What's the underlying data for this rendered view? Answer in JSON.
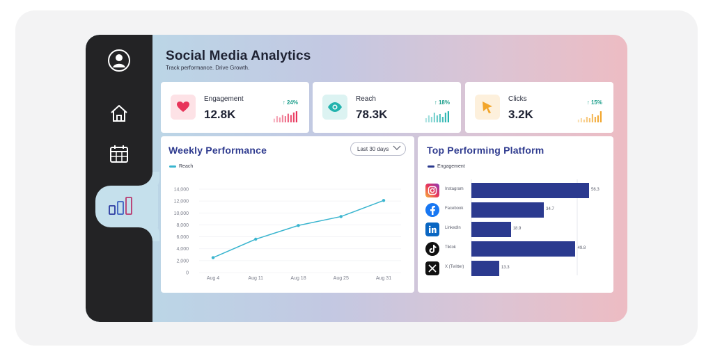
{
  "header": {
    "title": "Social Media Analytics",
    "subtitle": "Track performance. Drive Growth."
  },
  "sidebar": {
    "items": [
      {
        "icon": "user-avatar-icon",
        "active": false
      },
      {
        "icon": "home-icon",
        "active": false
      },
      {
        "icon": "calendar-icon",
        "active": false
      },
      {
        "icon": "bar-chart-icon",
        "active": true
      }
    ]
  },
  "kpis": [
    {
      "label": "Engagement",
      "value": "12.8K",
      "delta": "24%",
      "icon": "heart-icon",
      "color": "#e8345a",
      "bg": "#fde2e6",
      "spark": [
        3,
        5,
        4,
        6,
        5,
        7,
        6,
        8,
        9
      ]
    },
    {
      "label": "Reach",
      "value": "78.3K",
      "delta": "18%",
      "icon": "eye-icon",
      "color": "#22b3ae",
      "bg": "#dcf3f2",
      "spark": [
        3,
        5,
        4,
        7,
        5,
        6,
        4,
        7,
        8
      ]
    },
    {
      "label": "Clicks",
      "value": "3.2K",
      "delta": "15%",
      "icon": "cursor-icon",
      "color": "#f2a52b",
      "bg": "#fdf0dc",
      "spark": [
        2,
        3,
        2,
        4,
        3,
        6,
        4,
        5,
        8
      ]
    }
  ],
  "weekly": {
    "title": "Weekly Performance",
    "range": "Last 30 days",
    "legend": "Reach",
    "line_color": "#3ab5cf"
  },
  "platforms": {
    "title": "Top Performing Platform",
    "legend": "Engagement",
    "bar_color": "#2b3a8f",
    "items": [
      {
        "name": "Instagram",
        "value": 56.3,
        "label": "56.3",
        "icon": "instagram-icon"
      },
      {
        "name": "Facebook",
        "value": 34.7,
        "label": "34.7",
        "icon": "facebook-icon"
      },
      {
        "name": "LinkedIn",
        "value": 18.9,
        "label": "18.9",
        "icon": "linkedin-icon"
      },
      {
        "name": "Tiktok",
        "value": 49.8,
        "label": "49.8",
        "icon": "tiktok-icon"
      },
      {
        "name": "X (Twitter)",
        "value": 13.3,
        "label": "13.3",
        "icon": "x-twitter-icon"
      }
    ]
  },
  "chart_data": [
    {
      "type": "line",
      "title": "Weekly Performance",
      "categories": [
        "Aug 4",
        "Aug 11",
        "Aug 18",
        "Aug 25",
        "Aug 31"
      ],
      "series": [
        {
          "name": "Reach",
          "values": [
            2500,
            5600,
            7900,
            9400,
            12100
          ]
        }
      ],
      "yticks": [
        "0",
        "2,000",
        "4,000",
        "6,000",
        "8,000",
        "10,000",
        "12,000",
        "14,000"
      ],
      "ylim": [
        0,
        14000
      ],
      "grid": true
    },
    {
      "type": "bar",
      "orientation": "horizontal",
      "title": "Top Performing Platform",
      "categories": [
        "Instagram",
        "Facebook",
        "LinkedIn",
        "Tiktok",
        "X (Twitter)"
      ],
      "series": [
        {
          "name": "Engagement",
          "values": [
            56.3,
            34.7,
            18.9,
            49.8,
            13.3
          ]
        }
      ]
    }
  ]
}
